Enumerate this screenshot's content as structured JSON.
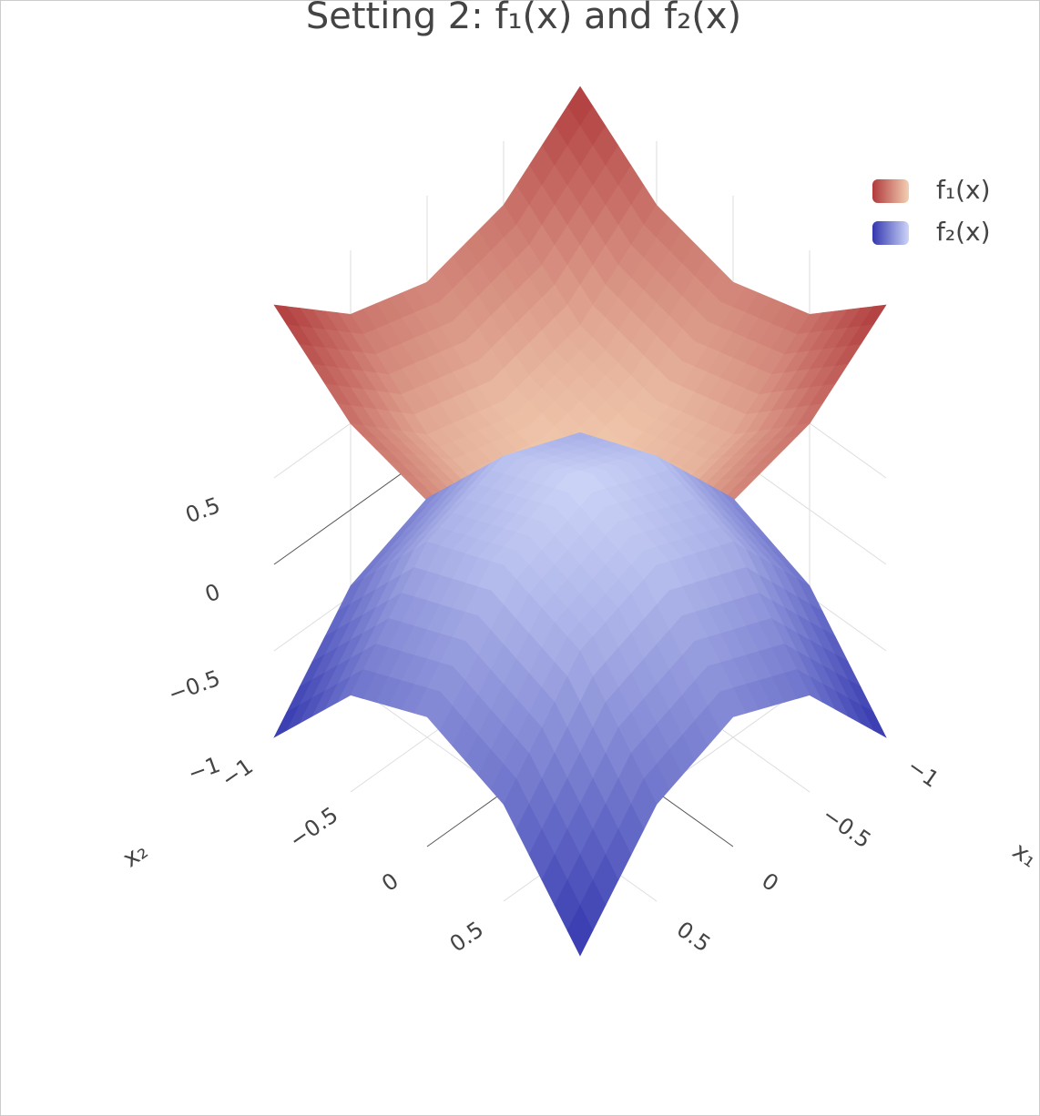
{
  "chart_data": {
    "type": "surface",
    "title": "Setting 2: f₁(x) and f₂(x)",
    "x_label": "x₁",
    "y_label": "x₂",
    "x": [
      -1,
      -0.5,
      0,
      0.5,
      1
    ],
    "y": [
      -1,
      -0.5,
      0,
      0.5,
      1
    ],
    "xlim": [
      -1,
      1
    ],
    "ylim": [
      -1,
      1
    ],
    "zlim": [
      -1,
      1.5
    ],
    "xticks": [
      {
        "value": -1,
        "label": "−1"
      },
      {
        "value": -0.5,
        "label": "−0.5"
      },
      0,
      0.5
    ],
    "yticks": [
      {
        "value": -1,
        "label": "−1"
      },
      {
        "value": -0.5,
        "label": "−0.5"
      },
      0,
      0.5
    ],
    "zticks": [
      {
        "value": -1,
        "label": "−1"
      },
      {
        "value": -0.5,
        "label": "−0.5"
      },
      0,
      0.5
    ],
    "grid": true,
    "legend": "top-right",
    "series": [
      {
        "name": "f₁(x)",
        "colorscale": [
          "#f3cfb2",
          "#b03a3d"
        ],
        "z": [
          [
            1.5,
            1.13,
            1,
            1.13,
            1.5
          ],
          [
            1.13,
            0.75,
            0.63,
            0.75,
            1.13
          ],
          [
            1,
            0.63,
            0.5,
            0.63,
            1
          ],
          [
            1.13,
            0.75,
            0.63,
            0.75,
            1.13
          ],
          [
            1.5,
            1.13,
            1,
            1.13,
            1.5
          ]
        ]
      },
      {
        "name": "f₂(x)",
        "colorscale": [
          "#3236ae",
          "#cdd5f8"
        ],
        "z": [
          [
            -1,
            -0.44,
            -0.25,
            -0.44,
            -1
          ],
          [
            -0.44,
            0.13,
            0.31,
            0.13,
            -0.44
          ],
          [
            -0.25,
            0.31,
            0.5,
            0.31,
            -0.25
          ],
          [
            -0.44,
            0.13,
            0.31,
            0.13,
            -0.44
          ],
          [
            -1,
            -0.44,
            -0.25,
            -0.44,
            -1
          ]
        ]
      }
    ]
  }
}
